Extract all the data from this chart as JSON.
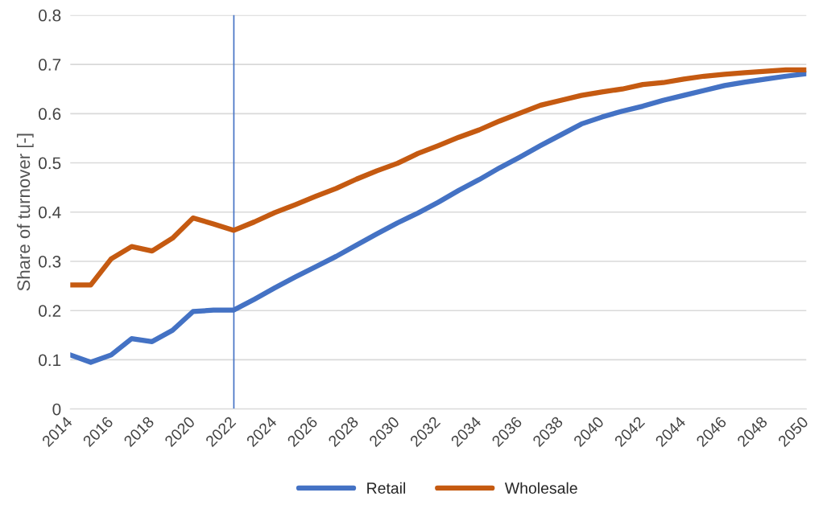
{
  "chart_data": {
    "type": "line",
    "ylabel": "Share of turnover [-]",
    "x": [
      2014,
      2015,
      2016,
      2017,
      2018,
      2019,
      2020,
      2021,
      2022,
      2023,
      2024,
      2025,
      2026,
      2027,
      2028,
      2029,
      2030,
      2031,
      2032,
      2033,
      2034,
      2035,
      2036,
      2037,
      2038,
      2039,
      2040,
      2041,
      2042,
      2043,
      2044,
      2045,
      2046,
      2047,
      2048,
      2049,
      2050
    ],
    "series": [
      {
        "name": "Retail",
        "color": "#4472c4",
        "values": [
          0.11,
          0.095,
          0.11,
          0.143,
          0.137,
          0.16,
          0.198,
          0.201,
          0.201,
          0.223,
          0.246,
          0.268,
          0.289,
          0.31,
          0.333,
          0.356,
          0.378,
          0.398,
          0.42,
          0.444,
          0.466,
          0.49,
          0.512,
          0.535,
          0.557,
          0.579,
          0.593,
          0.605,
          0.615,
          0.627,
          0.637,
          0.647,
          0.657,
          0.664,
          0.67,
          0.676,
          0.681
        ]
      },
      {
        "name": "Wholesale",
        "color": "#c55a11",
        "values": [
          0.252,
          0.252,
          0.305,
          0.33,
          0.321,
          0.347,
          0.388,
          0.376,
          0.363,
          0.38,
          0.399,
          0.415,
          0.432,
          0.448,
          0.467,
          0.484,
          0.499,
          0.519,
          0.535,
          0.552,
          0.567,
          0.585,
          0.601,
          0.617,
          0.627,
          0.637,
          0.644,
          0.65,
          0.659,
          0.663,
          0.67,
          0.676,
          0.68,
          0.683,
          0.686,
          0.689,
          0.689
        ]
      }
    ],
    "xlim": [
      2014,
      2050
    ],
    "xticks": [
      2014,
      2016,
      2018,
      2020,
      2022,
      2024,
      2026,
      2028,
      2030,
      2032,
      2034,
      2036,
      2038,
      2040,
      2042,
      2044,
      2046,
      2048,
      2050
    ],
    "ylim": [
      0,
      0.8
    ],
    "yticks": [
      0,
      0.1,
      0.2,
      0.3,
      0.4,
      0.5,
      0.6,
      0.7,
      0.8
    ],
    "ref_lines": [
      {
        "axis": "x",
        "value": 2022,
        "color": "#4472c4"
      }
    ],
    "grid": "y",
    "legend": "bottom",
    "marker": "none",
    "line_style": "solid"
  }
}
